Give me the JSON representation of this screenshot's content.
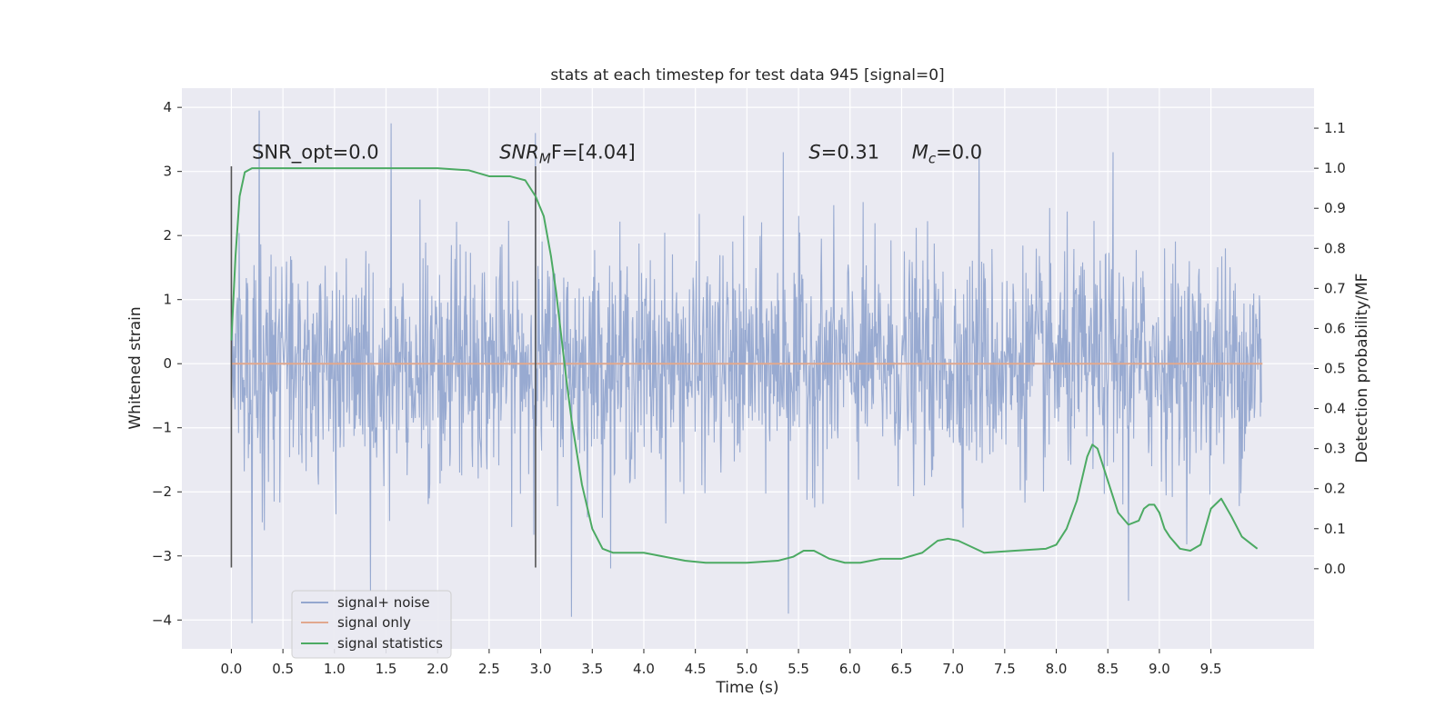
{
  "chart_data": {
    "type": "line",
    "title": "stats at each timestep for test data 945 [signal=0]",
    "xlabel": "Time (s)",
    "ylabel": "Whitened strain",
    "ylabel_right": "Detection probability/MF",
    "xlim": [
      -0.48,
      10.5
    ],
    "ylim": [
      -4.45,
      4.3
    ],
    "ylim_right": [
      -0.2,
      1.2
    ],
    "x_ticks": [
      0.0,
      0.5,
      1.0,
      1.5,
      2.0,
      2.5,
      3.0,
      3.5,
      4.0,
      4.5,
      5.0,
      5.5,
      6.0,
      6.5,
      7.0,
      7.5,
      8.0,
      8.5,
      9.0,
      9.5
    ],
    "x_tick_labels": [
      "0.0",
      "0.5",
      "1.0",
      "1.5",
      "2.0",
      "2.5",
      "3.0",
      "3.5",
      "4.0",
      "4.5",
      "5.0",
      "5.5",
      "6.0",
      "6.5",
      "7.0",
      "7.5",
      "8.0",
      "8.5",
      "9.0",
      "9.5"
    ],
    "y_ticks": [
      -4,
      -3,
      -2,
      -1,
      0,
      1,
      2,
      3,
      4
    ],
    "y_tick_labels": [
      "−4",
      "−3",
      "−2",
      "−1",
      "0",
      "1",
      "2",
      "3",
      "4"
    ],
    "y_right_ticks": [
      0.0,
      0.1,
      0.2,
      0.3,
      0.4,
      0.5,
      0.6,
      0.7,
      0.8,
      0.9,
      1.0,
      1.1
    ],
    "y_right_tick_labels": [
      "0.0",
      "0.1",
      "0.2",
      "0.3",
      "0.4",
      "0.5",
      "0.6",
      "0.7",
      "0.8",
      "0.9",
      "1.0",
      "1.1"
    ],
    "grid": true,
    "legend_position": "lower-left",
    "annotations": [
      {
        "id": "snr_opt",
        "plain": "SNR_opt=0.0",
        "x": 0.2,
        "y": 3.2
      },
      {
        "id": "snr_mf",
        "math": "SNR",
        "sub": "M",
        "rest": "F=[4.04]",
        "x": 2.6,
        "y": 3.2
      },
      {
        "id": "s_val",
        "math": "S",
        "rest": "=0.31",
        "x": 5.6,
        "y": 3.2
      },
      {
        "id": "mc_val",
        "math": "M",
        "sub": "c",
        "rest": "=0.0",
        "x": 6.6,
        "y": 3.2
      }
    ],
    "vlines": [
      {
        "x": 0.0,
        "ymin": -3.18,
        "ymax": 3.08
      },
      {
        "x": 2.95,
        "ymin": -3.18,
        "ymax": 3.08
      }
    ],
    "series": [
      {
        "name": "signal+ noise",
        "color": "#94a7cf",
        "axis": "left",
        "t_range": [
          0.0,
          9.99
        ],
        "samples": 2000,
        "sigma": 0.85,
        "seed": 945,
        "outliers": [
          [
            0.27,
            3.95
          ],
          [
            0.32,
            -2.6
          ],
          [
            0.2,
            -4.05
          ],
          [
            1.35,
            -3.55
          ],
          [
            1.55,
            3.75
          ],
          [
            2.95,
            3.6
          ],
          [
            3.3,
            -3.95
          ],
          [
            5.4,
            -3.9
          ],
          [
            8.7,
            -3.7
          ],
          [
            5.35,
            3.3
          ],
          [
            7.25,
            3.35
          ],
          [
            8.55,
            3.3
          ]
        ]
      },
      {
        "name": "signal only",
        "color": "#e1a88e",
        "axis": "left",
        "x": [
          0.0,
          10.0
        ],
        "y": [
          0.0,
          0.0
        ]
      },
      {
        "name": "signal statistics",
        "color": "#4caa63",
        "axis": "right",
        "x": [
          0.0,
          0.04,
          0.08,
          0.13,
          0.2,
          0.3,
          0.5,
          1.0,
          1.5,
          2.0,
          2.3,
          2.5,
          2.7,
          2.85,
          2.95,
          3.03,
          3.1,
          3.15,
          3.2,
          3.25,
          3.3,
          3.4,
          3.5,
          3.6,
          3.7,
          3.8,
          4.0,
          4.2,
          4.4,
          4.6,
          5.0,
          5.3,
          5.45,
          5.55,
          5.65,
          5.8,
          5.95,
          6.1,
          6.3,
          6.5,
          6.7,
          6.85,
          6.95,
          7.05,
          7.3,
          7.6,
          7.9,
          8.0,
          8.1,
          8.2,
          8.3,
          8.35,
          8.4,
          8.5,
          8.6,
          8.7,
          8.8,
          8.85,
          8.9,
          8.95,
          9.0,
          9.05,
          9.1,
          9.2,
          9.3,
          9.4,
          9.5,
          9.6,
          9.7,
          9.8,
          9.9,
          9.95
        ],
        "y": [
          0.57,
          0.78,
          0.93,
          0.99,
          1.0,
          1.0,
          1.0,
          1.0,
          1.0,
          1.0,
          0.995,
          0.98,
          0.98,
          0.97,
          0.93,
          0.88,
          0.78,
          0.69,
          0.58,
          0.47,
          0.37,
          0.21,
          0.1,
          0.05,
          0.04,
          0.04,
          0.04,
          0.03,
          0.02,
          0.015,
          0.015,
          0.02,
          0.03,
          0.045,
          0.045,
          0.025,
          0.015,
          0.015,
          0.025,
          0.025,
          0.04,
          0.07,
          0.075,
          0.07,
          0.04,
          0.045,
          0.05,
          0.06,
          0.1,
          0.17,
          0.28,
          0.31,
          0.3,
          0.22,
          0.14,
          0.11,
          0.12,
          0.15,
          0.16,
          0.16,
          0.14,
          0.1,
          0.08,
          0.05,
          0.045,
          0.06,
          0.15,
          0.175,
          0.13,
          0.08,
          0.06,
          0.05
        ]
      }
    ]
  }
}
